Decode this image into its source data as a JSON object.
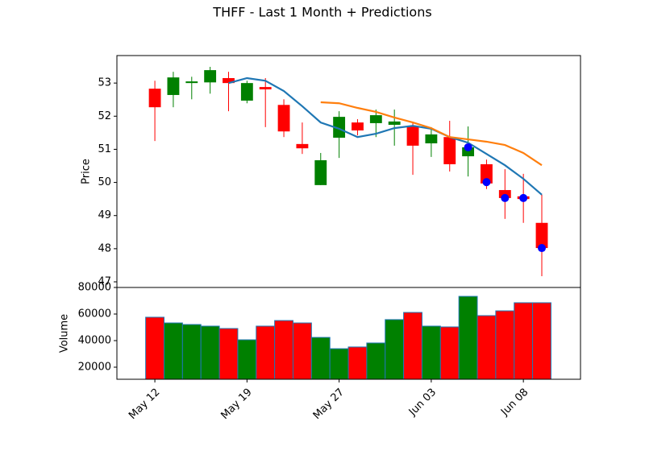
{
  "chart_data": [
    {
      "type": "candlestick",
      "title": "THFF - Last 1 Month + Predictions",
      "ylabel": "Price",
      "x": [
        0,
        1,
        2,
        3,
        4,
        5,
        6,
        7,
        8,
        9,
        10,
        11,
        12,
        13,
        14,
        15,
        16,
        17,
        18,
        19,
        20,
        21
      ],
      "open": [
        52.83,
        52.64,
        53.0,
        53.02,
        53.15,
        52.47,
        52.88,
        52.34,
        51.16,
        49.92,
        51.35,
        51.81,
        51.79,
        51.74,
        51.69,
        51.18,
        51.37,
        50.79,
        50.55,
        49.77,
        49.58,
        48.78
      ],
      "high": [
        53.07,
        53.34,
        53.19,
        53.49,
        53.34,
        53.07,
        53.15,
        52.51,
        51.81,
        50.89,
        52.15,
        51.91,
        52.2,
        52.2,
        51.81,
        51.67,
        51.86,
        51.69,
        50.69,
        50.4,
        50.26,
        49.63
      ],
      "low": [
        51.25,
        52.27,
        52.51,
        52.68,
        52.15,
        52.39,
        51.67,
        51.37,
        50.86,
        49.92,
        50.74,
        51.42,
        51.37,
        51.11,
        50.23,
        50.77,
        50.33,
        50.18,
        49.8,
        48.9,
        48.78,
        47.17
      ],
      "close": [
        52.27,
        53.17,
        53.05,
        53.39,
        53.0,
        53.0,
        52.81,
        51.54,
        51.03,
        50.67,
        51.98,
        51.57,
        52.03,
        51.84,
        51.11,
        51.45,
        50.55,
        51.06,
        49.97,
        49.53,
        49.5,
        48.02
      ],
      "up_color": "#008000",
      "down_color": "#ff0000",
      "lines": [
        {
          "color": "#1f77b4",
          "values": [
            null,
            null,
            null,
            null,
            53.0,
            53.15,
            53.07,
            52.76,
            52.3,
            51.81,
            51.62,
            51.37,
            51.47,
            51.64,
            51.71,
            51.62,
            51.37,
            51.2,
            50.86,
            50.52,
            50.11,
            49.63
          ]
        },
        {
          "color": "#ff7f0e",
          "values": [
            null,
            null,
            null,
            null,
            null,
            null,
            null,
            null,
            null,
            52.42,
            52.39,
            52.25,
            52.13,
            51.96,
            51.81,
            51.64,
            51.37,
            51.3,
            51.23,
            51.13,
            50.89,
            50.52
          ]
        }
      ],
      "points": {
        "color": "#0000ff",
        "values": [
          null,
          null,
          null,
          null,
          null,
          null,
          null,
          null,
          null,
          null,
          null,
          null,
          null,
          null,
          null,
          null,
          null,
          51.06,
          50.01,
          49.53,
          49.53,
          48.02
        ]
      },
      "xlim": [
        -2.06,
        23.1
      ],
      "ylim": [
        46.83,
        53.83
      ],
      "yticks": [
        47,
        48,
        49,
        50,
        51,
        52,
        53
      ]
    },
    {
      "type": "bar",
      "ylabel": "Volume",
      "x": [
        0,
        1,
        2,
        3,
        4,
        5,
        6,
        7,
        8,
        9,
        10,
        11,
        12,
        13,
        14,
        15,
        16,
        17,
        18,
        19,
        20,
        21
      ],
      "values": [
        57600,
        53300,
        52100,
        50900,
        49100,
        40600,
        50900,
        55100,
        53300,
        42400,
        33900,
        35200,
        38200,
        55800,
        61200,
        50900,
        50300,
        73300,
        58800,
        62400,
        68500,
        68500
      ],
      "colors": [
        "#ff0000",
        "#008000",
        "#008000",
        "#008000",
        "#ff0000",
        "#008000",
        "#ff0000",
        "#ff0000",
        "#ff0000",
        "#008000",
        "#008000",
        "#ff0000",
        "#008000",
        "#008000",
        "#ff0000",
        "#008000",
        "#ff0000",
        "#008000",
        "#ff0000",
        "#ff0000",
        "#ff0000",
        "#ff0000"
      ],
      "edge_color": "#1f77b4",
      "xlim": [
        -2.06,
        23.1
      ],
      "ylim": [
        10900,
        80000
      ],
      "yticks": [
        20000,
        40000,
        60000,
        80000
      ],
      "xticks": [
        {
          "value": 0,
          "label": "May 12"
        },
        {
          "value": 5,
          "label": "May 19"
        },
        {
          "value": 10,
          "label": "May 27"
        },
        {
          "value": 15,
          "label": "Jun 03"
        },
        {
          "value": 20,
          "label": "Jun 08"
        }
      ]
    }
  ]
}
